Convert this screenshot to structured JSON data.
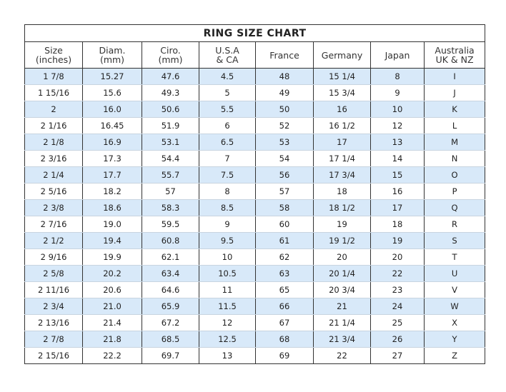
{
  "title": "RING SIZE CHART",
  "headers": [
    [
      "Size",
      "(inches)"
    ],
    [
      "Diam.",
      "(mm)"
    ],
    [
      "Ciro.",
      "(mm)"
    ],
    [
      "U.S.A",
      "& CA"
    ],
    [
      "France",
      ""
    ],
    [
      "Germany",
      ""
    ],
    [
      "Japan",
      ""
    ],
    [
      "Australia",
      "UK & NZ"
    ]
  ],
  "row_color": "#d8e9f9",
  "rows": [
    [
      "1 7/8",
      "15.27",
      "47.6",
      "4.5",
      "48",
      "15 1/4",
      "8",
      "I"
    ],
    [
      "1 15/16",
      "15.6",
      "49.3",
      "5",
      "49",
      "15 3/4",
      "9",
      "J"
    ],
    [
      "2",
      "16.0",
      "50.6",
      "5.5",
      "50",
      "16",
      "10",
      "K"
    ],
    [
      "2 1/16",
      "16.45",
      "51.9",
      "6",
      "52",
      "16 1/2",
      "12",
      "L"
    ],
    [
      "2 1/8",
      "16.9",
      "53.1",
      "6.5",
      "53",
      "17",
      "13",
      "M"
    ],
    [
      "2 3/16",
      "17.3",
      "54.4",
      "7",
      "54",
      "17 1/4",
      "14",
      "N"
    ],
    [
      "2 1/4",
      "17.7",
      "55.7",
      "7.5",
      "56",
      "17 3/4",
      "15",
      "O"
    ],
    [
      "2 5/16",
      "18.2",
      "57",
      "8",
      "57",
      "18",
      "16",
      "P"
    ],
    [
      "2 3/8",
      "18.6",
      "58.3",
      "8.5",
      "58",
      "18 1/2",
      "17",
      "Q"
    ],
    [
      "2 7/16",
      "19.0",
      "59.5",
      "9",
      "60",
      "19",
      "18",
      "R"
    ],
    [
      "2 1/2",
      "19.4",
      "60.8",
      "9.5",
      "61",
      "19 1/2",
      "19",
      "S"
    ],
    [
      "2 9/16",
      "19.9",
      "62.1",
      "10",
      "62",
      "20",
      "20",
      "T"
    ],
    [
      "2 5/8",
      "20.2",
      "63.4",
      "10.5",
      "63",
      "20 1/4",
      "22",
      "U"
    ],
    [
      "2 11/16",
      "20.6",
      "64.6",
      "11",
      "65",
      "20 3/4",
      "23",
      "V"
    ],
    [
      "2 3/4",
      "21.0",
      "65.9",
      "11.5",
      "66",
      "21",
      "24",
      "W"
    ],
    [
      "2 13/16",
      "21.4",
      "67.2",
      "12",
      "67",
      "21 1/4",
      "25",
      "X"
    ],
    [
      "2 7/8",
      "21.8",
      "68.5",
      "12.5",
      "68",
      "21 3/4",
      "26",
      "Y"
    ],
    [
      "2 15/16",
      "22.2",
      "69.7",
      "13",
      "69",
      "22",
      "27",
      "Z"
    ]
  ]
}
